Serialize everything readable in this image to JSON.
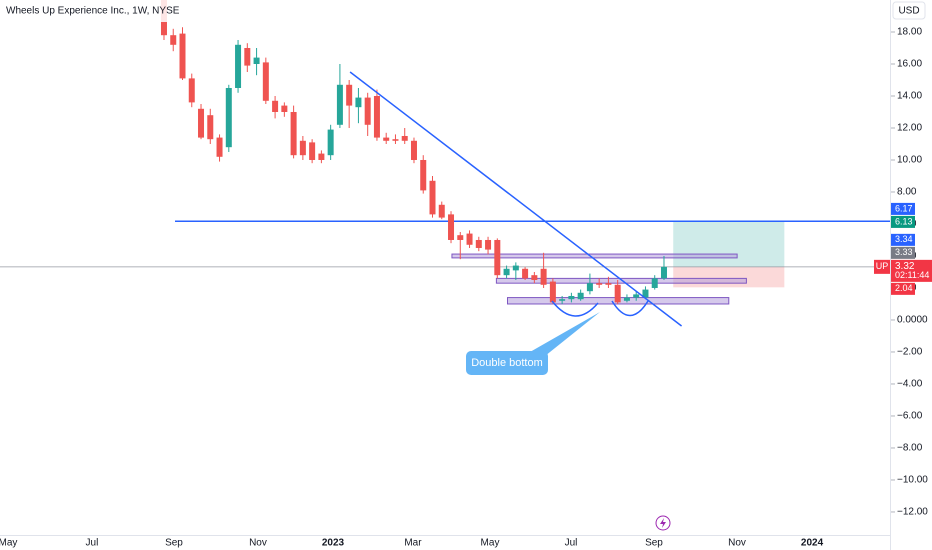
{
  "chart_data": {
    "type": "candlestick",
    "title": "Wheels Up Experience Inc., 1W, NYSE",
    "currency": "USD",
    "up_color": "#26a69a",
    "down_color": "#ef5350",
    "open": [
      20.0,
      17.8,
      17.9,
      15.1,
      13.2,
      12.8,
      11.4,
      10.8,
      14.5,
      17.0,
      16.0,
      16.1,
      13.7,
      13.4,
      13.0,
      11.2,
      11.1,
      10.4,
      10.3,
      12.2,
      14.7,
      13.3,
      13.9,
      14.0,
      11.4,
      11.3,
      11.5,
      11.2,
      10.0,
      8.7,
      7.2,
      6.6,
      5.3,
      5.4,
      5.0,
      5.0,
      5.0,
      2.8,
      3.1,
      3.2,
      2.8,
      3.2,
      2.4,
      1.2,
      1.3,
      1.3,
      1.8,
      2.3,
      2.3,
      2.2,
      1.2,
      1.4,
      1.4,
      2.0,
      2.6
    ],
    "high": [
      20.5,
      18.2,
      18.3,
      15.4,
      13.5,
      13.2,
      11.6,
      14.7,
      17.5,
      17.3,
      17.0,
      16.4,
      14.0,
      13.6,
      13.4,
      11.5,
      11.3,
      10.6,
      12.2,
      16.0,
      15.0,
      14.5,
      14.2,
      14.4,
      11.7,
      11.6,
      12.0,
      11.4,
      10.3,
      9.0,
      7.4,
      6.8,
      5.5,
      5.6,
      5.2,
      5.2,
      5.1,
      3.4,
      3.6,
      3.3,
      3.0,
      4.2,
      2.6,
      1.5,
      1.7,
      1.9,
      2.9,
      2.6,
      2.7,
      2.5,
      1.6,
      1.8,
      2.1,
      2.8,
      4.0
    ],
    "low": [
      17.5,
      16.8,
      15.0,
      13.3,
      11.3,
      11.0,
      9.9,
      10.5,
      14.2,
      15.5,
      15.3,
      13.5,
      12.6,
      12.7,
      10.1,
      10.0,
      9.8,
      9.8,
      10.0,
      12.0,
      12.0,
      12.3,
      11.5,
      11.2,
      11.0,
      11.0,
      11.0,
      9.8,
      7.9,
      6.4,
      6.3,
      4.8,
      3.8,
      4.5,
      4.3,
      4.1,
      2.6,
      2.6,
      2.5,
      2.5,
      2.3,
      2.0,
      1.0,
      1.0,
      1.1,
      1.2,
      1.6,
      2.0,
      2.0,
      1.0,
      1.1,
      1.2,
      1.3,
      1.9,
      2.5
    ],
    "close": [
      17.8,
      17.2,
      15.1,
      13.6,
      11.4,
      11.3,
      10.2,
      14.5,
      17.2,
      15.9,
      16.4,
      13.7,
      13.0,
      13.0,
      10.3,
      10.3,
      10.0,
      10.0,
      11.9,
      14.7,
      13.4,
      13.9,
      12.2,
      11.4,
      11.2,
      11.2,
      11.2,
      10.0,
      8.1,
      6.6,
      6.4,
      5.0,
      5.0,
      4.7,
      4.5,
      4.4,
      2.8,
      3.2,
      3.4,
      2.6,
      2.5,
      2.2,
      1.1,
      1.3,
      1.5,
      1.7,
      2.3,
      2.2,
      2.2,
      1.1,
      1.4,
      1.6,
      1.9,
      2.6,
      3.32
    ],
    "xlim": [
      -17.71,
      78.41
    ],
    "xticks": [
      {
        "value": -16.85,
        "label": "May"
      },
      {
        "value": -7.78,
        "label": "Jul"
      },
      {
        "value": 1.08,
        "label": "Sep"
      },
      {
        "value": 10.15,
        "label": "Nov"
      },
      {
        "value": 18.25,
        "label": "2023"
      },
      {
        "value": 26.89,
        "label": "Mar"
      },
      {
        "value": 35.21,
        "label": "May"
      },
      {
        "value": 43.96,
        "label": "Jul"
      },
      {
        "value": 52.92,
        "label": "Sep"
      },
      {
        "value": 61.89,
        "label": "Nov"
      },
      {
        "value": 69.99,
        "label": "2024"
      }
    ],
    "ylim": [
      -13.44,
      20
    ],
    "yticks": [
      {
        "value": 18,
        "label": "18.00"
      },
      {
        "value": 16,
        "label": "16.00"
      },
      {
        "value": 14,
        "label": "14.00"
      },
      {
        "value": 12,
        "label": "12.00"
      },
      {
        "value": 10,
        "label": "10.00"
      },
      {
        "value": 8,
        "label": "8.00"
      },
      {
        "value": 6,
        "label": "6.00"
      },
      {
        "value": 4,
        "label": "4.00"
      },
      {
        "value": 2,
        "label": "2.00"
      },
      {
        "value": 0,
        "label": "0.0000"
      },
      {
        "value": -2,
        "label": "−2.00"
      },
      {
        "value": -4,
        "label": "−4.00"
      },
      {
        "value": -6,
        "label": "−6.00"
      },
      {
        "value": -8,
        "label": "−8.00"
      },
      {
        "value": -10,
        "label": "−10.00"
      },
      {
        "value": -12,
        "label": "−12.00"
      }
    ],
    "price_labels": [
      {
        "value": 6.17,
        "color": "#2962ff"
      },
      {
        "value": 6.13,
        "color": "#089981"
      },
      {
        "value": 3.34,
        "color": "#2962ff"
      },
      {
        "value": 3.33,
        "color": "#787b86"
      },
      {
        "value": 2.04,
        "color": "#f23645"
      }
    ],
    "last_price": {
      "value": 3.32,
      "symbol": "UP",
      "countdown": "02:11:44",
      "color": "#f23645"
    },
    "horizontal_line": {
      "value": 6.17,
      "x_start": 1.19,
      "color": "#2962ff"
    },
    "trendline": {
      "x": [
        20.1,
        55.9
      ],
      "y": [
        15.5,
        -0.375
      ],
      "color": "#2962ff"
    },
    "zones": [
      {
        "x": [
          31.1,
          61.9
        ],
        "y": [
          3.88,
          4.12
        ]
      },
      {
        "x": [
          35.9,
          62.9
        ],
        "y": [
          2.3,
          2.6
        ]
      },
      {
        "x": [
          37.1,
          61.0
        ],
        "y": [
          1.0,
          1.4
        ]
      }
    ],
    "position": {
      "x": [
        55.0,
        67.0
      ],
      "entry": 3.32,
      "target": 6.17,
      "stop": 2.04
    },
    "annotation": "Double bottom"
  }
}
